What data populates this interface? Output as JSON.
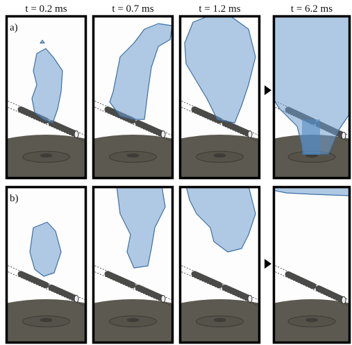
{
  "columns": [
    "t = 0.2 ms",
    "t = 0.7 ms",
    "t = 1.2 ms",
    "t = 6.2 ms"
  ],
  "rows": [
    "a)",
    "b)"
  ]
}
